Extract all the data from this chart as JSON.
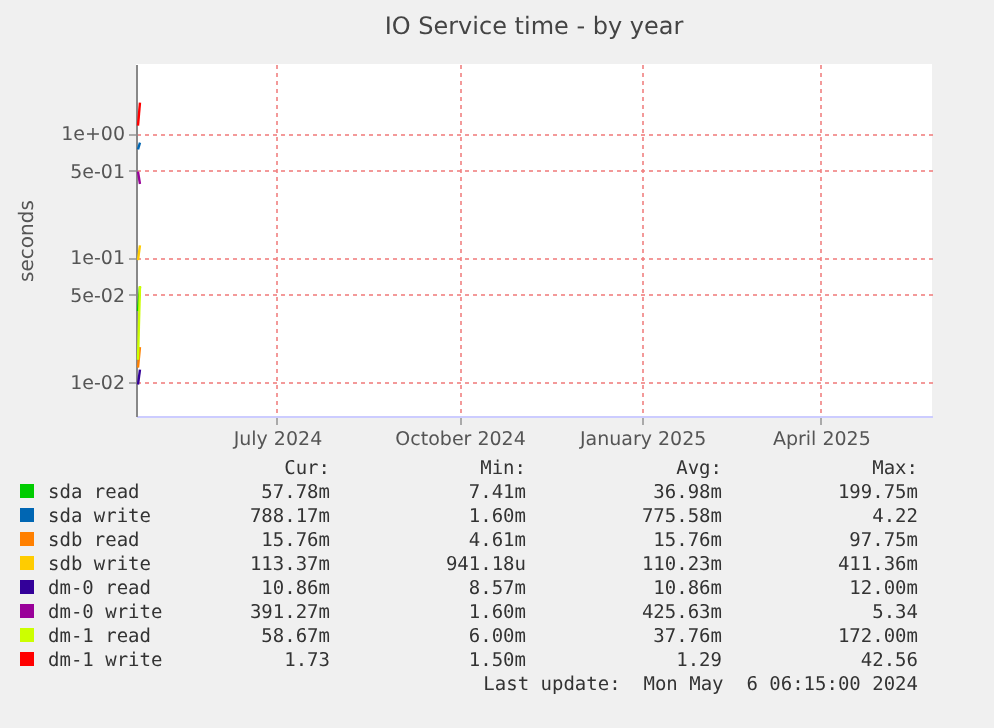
{
  "chart_data": {
    "type": "line",
    "title": "IO Service time - by year",
    "ylabel": "seconds",
    "xlim": [
      "2024-04-21",
      "2025-05-27"
    ],
    "xticks": [
      {
        "value": "2024-07-01",
        "label": "July 2024"
      },
      {
        "value": "2024-10-01",
        "label": "October 2024"
      },
      {
        "value": "2025-01-01",
        "label": "January 2025"
      },
      {
        "value": "2025-04-01",
        "label": "April 2025"
      }
    ],
    "ylim": [
      0.0053,
      3.6
    ],
    "log": true,
    "yticks": [
      {
        "value": 0.01,
        "label": "1e-02"
      },
      {
        "value": 0.05,
        "label": "5e-02"
      },
      {
        "value": 0.1,
        "label": "1e-01"
      },
      {
        "value": 0.5,
        "label": "5e-01"
      },
      {
        "value": 1,
        "label": "1e+00"
      }
    ],
    "grid": true,
    "legend": "bottom",
    "series": [
      {
        "name": "sda read",
        "color": "#00cc00",
        "x": [
          "2024-04-22",
          "2024-04-23"
        ],
        "values": [
          0.037,
          0.058
        ]
      },
      {
        "name": "sda write",
        "color": "#0066b3",
        "x": [
          "2024-04-22",
          "2024-04-23"
        ],
        "values": [
          0.74,
          0.84
        ]
      },
      {
        "name": "sdb read",
        "color": "#ff8000",
        "x": [
          "2024-04-22",
          "2024-04-23"
        ],
        "values": [
          0.013,
          0.019
        ]
      },
      {
        "name": "sdb write",
        "color": "#ffcc00",
        "x": [
          "2024-04-22",
          "2024-04-23"
        ],
        "values": [
          0.095,
          0.125
        ]
      },
      {
        "name": "dm-0 read",
        "color": "#330099",
        "x": [
          "2024-04-22",
          "2024-04-23"
        ],
        "values": [
          0.0095,
          0.0125
        ]
      },
      {
        "name": "dm-0 write",
        "color": "#990099",
        "x": [
          "2024-04-22",
          "2024-04-23"
        ],
        "values": [
          0.49,
          0.39
        ]
      },
      {
        "name": "dm-1 read",
        "color": "#ccff00",
        "x": [
          "2024-04-22",
          "2024-04-23"
        ],
        "values": [
          0.015,
          0.059
        ]
      },
      {
        "name": "dm-1 write",
        "color": "#ff0000",
        "x": [
          "2024-04-22",
          "2024-04-23"
        ],
        "values": [
          1.15,
          1.76
        ]
      }
    ],
    "annotations": [
      "Cur:",
      "Min:",
      "Avg:",
      "Max:",
      "57.78m",
      "7.41m",
      "36.98m",
      "199.75m",
      "788.17m",
      "1.60m",
      "775.58m",
      "4.22",
      "15.76m",
      "4.61m",
      "15.76m",
      "97.75m",
      "113.37m",
      "941.18u",
      "110.23m",
      "411.36m",
      "10.86m",
      "8.57m",
      "10.86m",
      "12.00m",
      "391.27m",
      "1.60m",
      "425.63m",
      "5.34",
      "58.67m",
      "6.00m",
      "37.76m",
      "172.00m",
      "1.73",
      "1.50m",
      "1.29",
      "42.56",
      "Last update:  Mon May  6 06:15:00 2024"
    ]
  }
}
